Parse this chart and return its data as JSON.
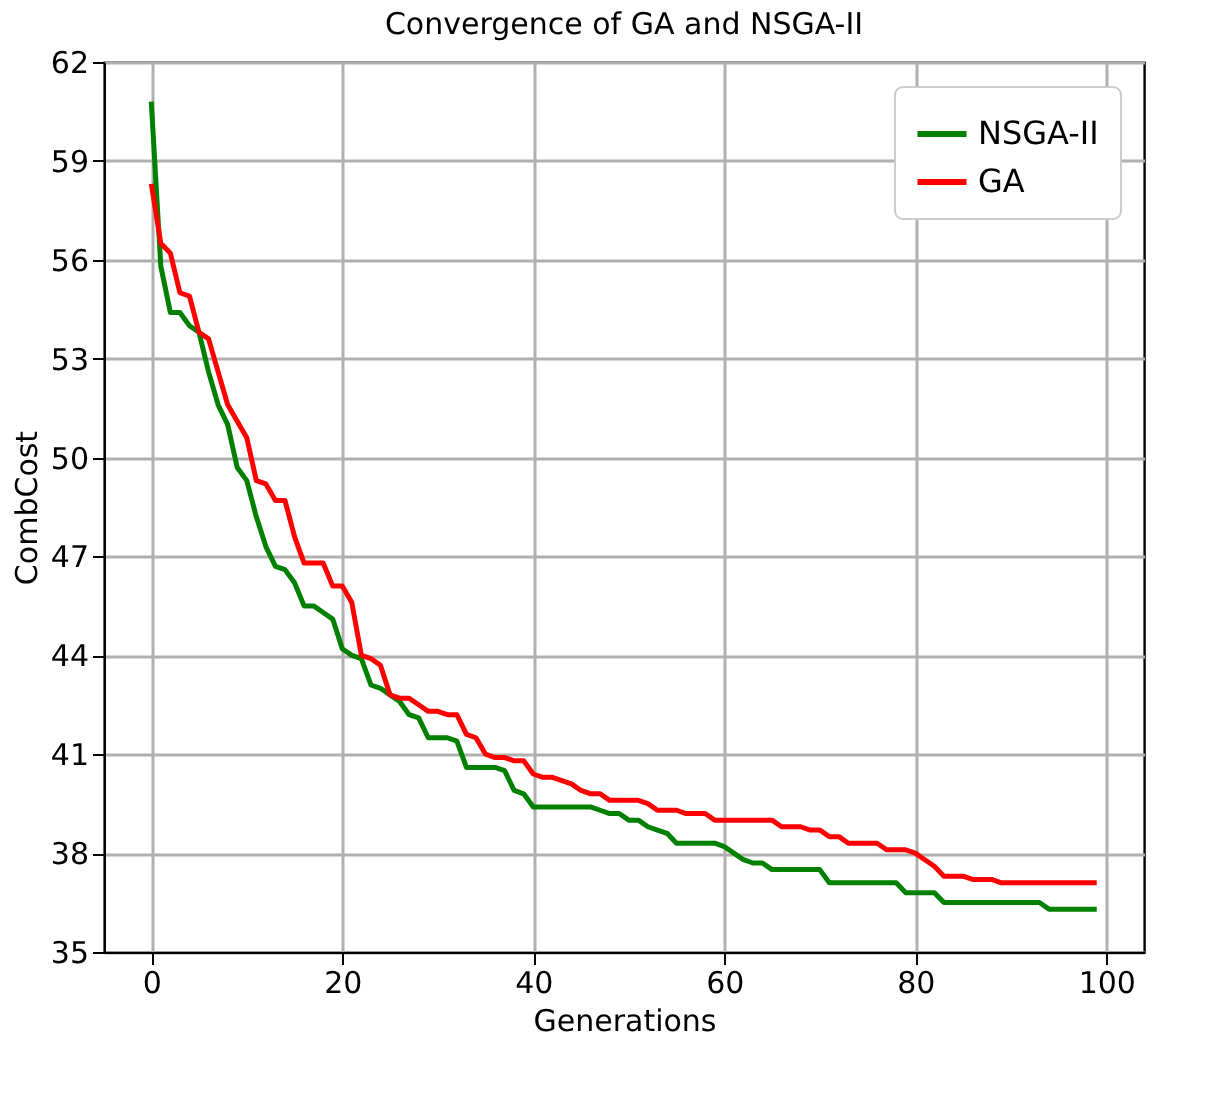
{
  "chart_data": {
    "type": "line",
    "title": "Convergence of GA and NSGA-II",
    "xlabel": "Generations",
    "ylabel": "CombCost",
    "x": [
      0,
      1,
      2,
      3,
      4,
      5,
      6,
      7,
      8,
      9,
      10,
      11,
      12,
      13,
      14,
      15,
      16,
      17,
      18,
      19,
      20,
      21,
      22,
      23,
      24,
      25,
      26,
      27,
      28,
      29,
      30,
      31,
      32,
      33,
      34,
      35,
      36,
      37,
      38,
      39,
      40,
      41,
      42,
      43,
      44,
      45,
      46,
      47,
      48,
      49,
      50,
      51,
      52,
      53,
      54,
      55,
      56,
      57,
      58,
      59,
      60,
      61,
      62,
      63,
      64,
      65,
      66,
      67,
      68,
      69,
      70,
      71,
      72,
      73,
      74,
      75,
      76,
      77,
      78,
      79,
      80,
      81,
      82,
      83,
      84,
      85,
      86,
      87,
      88,
      89,
      90,
      91,
      92,
      93,
      94,
      95,
      96,
      97,
      98,
      99
    ],
    "series": [
      {
        "name": "NSGA-II",
        "color": "#008000",
        "values": [
          60.8,
          55.8,
          54.4,
          54.4,
          54.0,
          53.8,
          52.6,
          51.6,
          51.0,
          49.7,
          49.3,
          48.2,
          47.3,
          46.7,
          46.6,
          46.2,
          45.5,
          45.5,
          45.3,
          45.1,
          44.2,
          44.0,
          43.9,
          43.1,
          43.0,
          42.8,
          42.6,
          42.2,
          42.1,
          41.5,
          41.5,
          41.5,
          41.4,
          40.6,
          40.6,
          40.6,
          40.6,
          40.5,
          39.9,
          39.8,
          39.4,
          39.4,
          39.4,
          39.4,
          39.4,
          39.4,
          39.4,
          39.3,
          39.2,
          39.2,
          39.0,
          39.0,
          38.8,
          38.7,
          38.6,
          38.3,
          38.3,
          38.3,
          38.3,
          38.3,
          38.2,
          38.0,
          37.8,
          37.7,
          37.7,
          37.5,
          37.5,
          37.5,
          37.5,
          37.5,
          37.5,
          37.1,
          37.1,
          37.1,
          37.1,
          37.1,
          37.1,
          37.1,
          37.1,
          36.8,
          36.8,
          36.8,
          36.8,
          36.5,
          36.5,
          36.5,
          36.5,
          36.5,
          36.5,
          36.5,
          36.5,
          36.5,
          36.5,
          36.5,
          36.3,
          36.3,
          36.3,
          36.3,
          36.3,
          36.3
        ]
      },
      {
        "name": "GA",
        "color": "#ff0000",
        "values": [
          58.3,
          56.5,
          56.2,
          55.0,
          54.9,
          53.8,
          53.6,
          52.6,
          51.6,
          51.1,
          50.6,
          49.3,
          49.2,
          48.7,
          48.7,
          47.6,
          46.8,
          46.8,
          46.8,
          46.1,
          46.1,
          45.6,
          44.0,
          43.9,
          43.7,
          42.8,
          42.7,
          42.7,
          42.5,
          42.3,
          42.3,
          42.2,
          42.2,
          41.6,
          41.5,
          41.0,
          40.9,
          40.9,
          40.8,
          40.8,
          40.4,
          40.3,
          40.3,
          40.2,
          40.1,
          39.9,
          39.8,
          39.8,
          39.6,
          39.6,
          39.6,
          39.6,
          39.5,
          39.3,
          39.3,
          39.3,
          39.2,
          39.2,
          39.2,
          39.0,
          39.0,
          39.0,
          39.0,
          39.0,
          39.0,
          39.0,
          38.8,
          38.8,
          38.8,
          38.7,
          38.7,
          38.5,
          38.5,
          38.3,
          38.3,
          38.3,
          38.3,
          38.1,
          38.1,
          38.1,
          38.0,
          37.8,
          37.6,
          37.3,
          37.3,
          37.3,
          37.2,
          37.2,
          37.2,
          37.1,
          37.1,
          37.1,
          37.1,
          37.1,
          37.1,
          37.1,
          37.1,
          37.1,
          37.1,
          37.1
        ]
      }
    ],
    "xlim": [
      -4.95,
      103.95
    ],
    "xticks": [
      0,
      20,
      40,
      60,
      80,
      100
    ],
    "ylim": [
      35,
      62
    ],
    "yticks": [
      35,
      38,
      41,
      44,
      47,
      50,
      53,
      56,
      59,
      62
    ],
    "grid": true,
    "legend": "top right",
    "line_style": "solid",
    "marker": "none"
  }
}
